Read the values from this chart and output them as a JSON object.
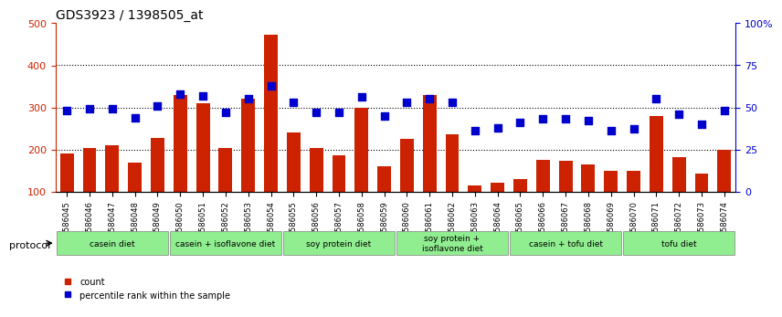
{
  "title": "GDS3923 / 1398505_at",
  "samples": [
    "GSM586045",
    "GSM586046",
    "GSM586047",
    "GSM586048",
    "GSM586049",
    "GSM586050",
    "GSM586051",
    "GSM586052",
    "GSM586053",
    "GSM586054",
    "GSM586055",
    "GSM586056",
    "GSM586057",
    "GSM586058",
    "GSM586059",
    "GSM586060",
    "GSM586061",
    "GSM586062",
    "GSM586063",
    "GSM586064",
    "GSM586065",
    "GSM586066",
    "GSM586067",
    "GSM586068",
    "GSM586069",
    "GSM586070",
    "GSM586071",
    "GSM586072",
    "GSM586073",
    "GSM586074"
  ],
  "counts": [
    190,
    203,
    210,
    168,
    228,
    330,
    310,
    203,
    320,
    473,
    240,
    203,
    185,
    300,
    160,
    225,
    330,
    235,
    115,
    120,
    130,
    175,
    173,
    165,
    148,
    150,
    280,
    182,
    143,
    200
  ],
  "percentile_ranks": [
    48,
    49,
    49,
    44,
    51,
    58,
    57,
    47,
    55,
    63,
    53,
    47,
    47,
    56,
    45,
    53,
    55,
    53,
    36,
    38,
    41,
    43,
    43,
    42,
    36,
    37,
    55,
    46,
    40,
    48
  ],
  "protocol_groups": [
    {
      "label": "casein diet",
      "start": 0,
      "end": 5,
      "color": "#90EE90"
    },
    {
      "label": "casein + isoflavone diet",
      "start": 5,
      "end": 10,
      "color": "#90EE90"
    },
    {
      "label": "soy protein diet",
      "start": 10,
      "end": 15,
      "color": "#90EE90"
    },
    {
      "label": "soy protein +\nisoflavone diet",
      "start": 15,
      "end": 20,
      "color": "#90EE90"
    },
    {
      "label": "casein + tofu diet",
      "start": 20,
      "end": 25,
      "color": "#90EE90"
    },
    {
      "label": "tofu diet",
      "start": 25,
      "end": 30,
      "color": "#90EE90"
    }
  ],
  "bar_color": "#CC2200",
  "dot_color": "#0000CC",
  "ylim_left": [
    100,
    500
  ],
  "ylim_right": [
    0,
    100
  ],
  "yticks_left": [
    100,
    200,
    300,
    400,
    500
  ],
  "yticks_right": [
    0,
    25,
    50,
    75,
    100
  ],
  "ytick_labels_right": [
    "0",
    "25",
    "50",
    "75",
    "100%"
  ]
}
